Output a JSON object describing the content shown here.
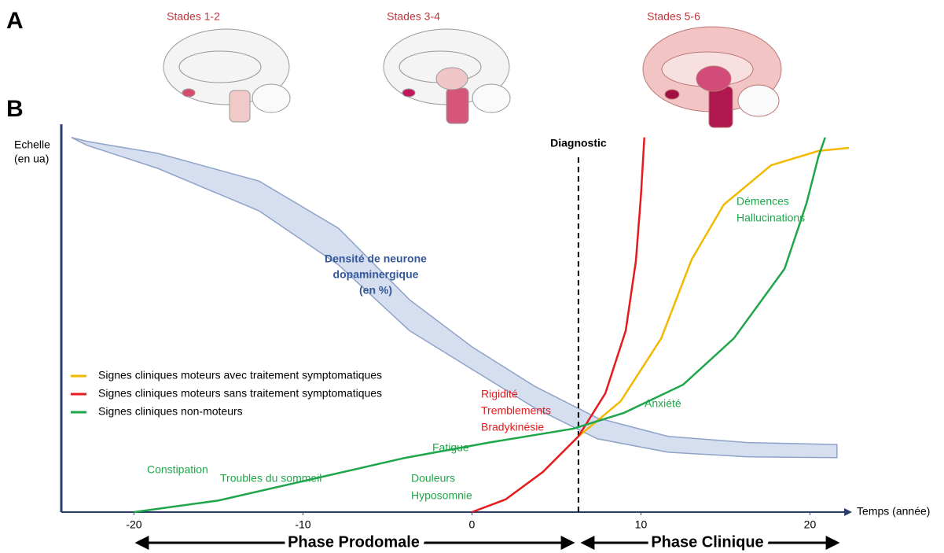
{
  "panels": {
    "a": "A",
    "b": "B"
  },
  "stages": [
    "Stades 1-2",
    "Stades 3-4",
    "Stades 5-6"
  ],
  "chart_data": {
    "type": "line",
    "y_label": [
      "Echelle",
      "(en ua)"
    ],
    "x_label": "Temps (année)",
    "xlim": [
      -24.3,
      22.4
    ],
    "ylim": [
      0,
      100
    ],
    "xticks": [
      -20,
      -10,
      0,
      10,
      20
    ],
    "diagnostic": {
      "label": "Diagnostic",
      "x": 6.3
    },
    "band": {
      "label": [
        "Densité de neurone",
        "dopaminergique",
        "(en %)"
      ],
      "color": "#d6dff0",
      "edge": "#8fa3c8",
      "text_color": "#34589a",
      "x": [
        -23.7,
        -22.8,
        -18.6,
        -12.6,
        -7.9,
        -3.7,
        0,
        3.7,
        7.4,
        11.6,
        16.3,
        21.6
      ],
      "upper": [
        97,
        96,
        92.9,
        85.7,
        73.5,
        55,
        42.8,
        32.6,
        24.4,
        19.6,
        18,
        17.5
      ],
      "lower": [
        97,
        95,
        89,
        78,
        64,
        47,
        37,
        27,
        19,
        15.5,
        14.3,
        14.1
      ]
    },
    "series": [
      {
        "name": "Signes cliniques moteurs avec traitement symptomatiques",
        "color": "#f5b800",
        "x": [
          6.3,
          8.8,
          11.2,
          13,
          14.9,
          17.7,
          20.5,
          22.3
        ],
        "values": [
          19.6,
          28.7,
          45,
          65.4,
          79.6,
          89.8,
          93.5,
          94.3
        ]
      },
      {
        "name": "Signes cliniques moteurs sans traitement symptomatiques",
        "color": "#e41a1c",
        "x": [
          0,
          2,
          4.2,
          6.3,
          7.9,
          9.1,
          9.7,
          10.0,
          10.2
        ],
        "values": [
          0,
          3.3,
          10.4,
          19.6,
          30.8,
          47,
          65,
          82,
          97
        ]
      },
      {
        "name": "Signes cliniques non-moteurs",
        "color": "#1fa64a",
        "x": [
          -20,
          -15,
          -10,
          -4,
          1,
          6,
          9,
          12.5,
          15.5,
          18.5,
          19.8,
          20.5,
          20.9
        ],
        "values": [
          0,
          3,
          8,
          14,
          18,
          21.6,
          25.7,
          33,
          45,
          63,
          80,
          92,
          97
        ]
      }
    ],
    "annotations": [
      {
        "text": "Constipation",
        "color": "#1fa64a"
      },
      {
        "text": "Troubles du sommeil",
        "color": "#1fa64a"
      },
      {
        "text": "Fatigue",
        "color": "#1fa64a"
      },
      {
        "text": "Douleurs",
        "color": "#1fa64a"
      },
      {
        "text": "Hyposomnie",
        "color": "#1fa64a"
      },
      {
        "text": "Anxiété",
        "color": "#1fa64a"
      },
      {
        "text": "Démences",
        "color": "#1fa64a"
      },
      {
        "text": "Hallucinations",
        "color": "#1fa64a"
      },
      {
        "text": "Rigidité",
        "color": "#e41a1c"
      },
      {
        "text": "Tremblements",
        "color": "#e41a1c"
      },
      {
        "text": "Bradykinésie",
        "color": "#e41a1c"
      }
    ]
  },
  "phases": [
    "Phase Prodomale",
    "Phase Clinique"
  ]
}
